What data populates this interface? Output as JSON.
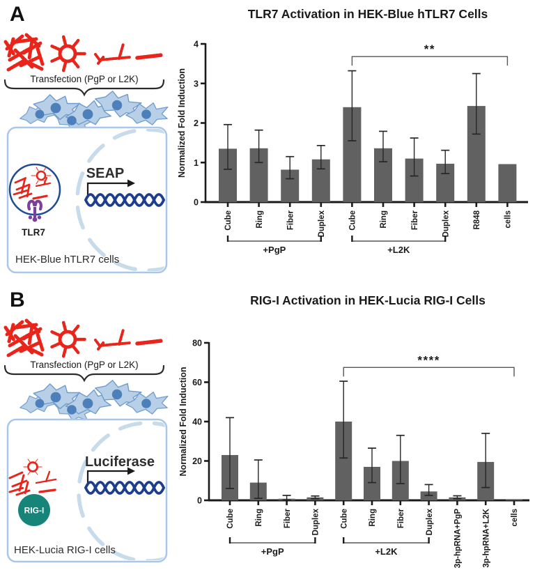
{
  "colors": {
    "bar": "#616161",
    "axis": "#1a1a1a",
    "error_bar": "#262626",
    "bracket": "#555555",
    "rna_red": "#e8241b",
    "dna_blue": "#1d3e8e",
    "tlr7_purple": "#7d3f9d",
    "rigi_teal": "#17847a",
    "cell_fill": "#b7cfe7",
    "cell_edge": "#6f9ccc",
    "nucleus_fill": "#4d7fbb",
    "membrane_box_edge": "#a9c7e8",
    "nuclear_envelope": "#c8dbeb",
    "endosome_edge": "#1e4c94"
  },
  "panels": [
    {
      "label": "A",
      "illustration": {
        "transfection": "Transfection (PgP or L2K)",
        "receptor": "TLR7",
        "reporter": "SEAP",
        "cell_line": "HEK-Blue hTLR7 cells"
      }
    },
    {
      "label": "B",
      "illustration": {
        "transfection": "Transfection (PgP or L2K)",
        "receptor": "RIG-I",
        "reporter": "Luciferase",
        "cell_line": "HEK-Lucia RIG-I cells"
      }
    }
  ],
  "chart_data": [
    {
      "type": "bar",
      "title": "TLR7 Activation in HEK-Blue hTLR7 Cells",
      "xlabel": "",
      "ylabel": "Normalized Fold Induction",
      "ylim": [
        0,
        4
      ],
      "yticks": [
        0,
        1,
        2,
        3,
        4
      ],
      "grid": false,
      "legend": "none",
      "categories": [
        "Cube",
        "Ring",
        "Fiber",
        "Duplex",
        "Cube",
        "Ring",
        "Fiber",
        "Duplex",
        "R848",
        "cells"
      ],
      "values": [
        1.35,
        1.36,
        0.82,
        1.08,
        2.4,
        1.36,
        1.1,
        0.97,
        2.43,
        0.96
      ],
      "errors_low": [
        0.83,
        1.0,
        0.59,
        0.84,
        1.55,
        1.02,
        0.66,
        0.72,
        1.72,
        null
      ],
      "errors_high": [
        1.96,
        1.82,
        1.15,
        1.43,
        3.32,
        1.79,
        1.62,
        1.31,
        3.25,
        null
      ],
      "groups": [
        {
          "label": "+PgP",
          "start": 0,
          "end": 3
        },
        {
          "label": "+L2K",
          "start": 4,
          "end": 7
        }
      ],
      "significance": [
        {
          "label": "**",
          "start": 4,
          "end": 9,
          "y": 3.68
        }
      ]
    },
    {
      "type": "bar",
      "title": "RIG-I Activation in HEK-Lucia RIG-I Cells",
      "xlabel": "",
      "ylabel": "Normalized Fold Induction",
      "ylim": [
        0,
        80
      ],
      "yticks": [
        0,
        20,
        40,
        60,
        80
      ],
      "grid": false,
      "legend": "none",
      "categories": [
        "Cube",
        "Ring",
        "Fiber",
        "Duplex",
        "Cube",
        "Ring",
        "Fiber",
        "Duplex",
        "3p-hpRNA+PgP",
        "3p-hpRNA+L2K",
        "cells"
      ],
      "values": [
        23,
        9,
        0.8,
        1.5,
        40,
        17,
        20,
        4.5,
        1.5,
        19.5,
        0.6
      ],
      "errors_low": [
        6,
        1,
        0.2,
        0.8,
        21.5,
        9,
        8.5,
        2.5,
        0.8,
        6.5,
        null
      ],
      "errors_high": [
        42,
        20.5,
        2.5,
        2.2,
        60.5,
        26.5,
        33,
        8,
        2.3,
        34,
        null
      ],
      "groups": [
        {
          "label": "+PgP",
          "start": 0,
          "end": 3
        },
        {
          "label": "+L2K",
          "start": 4,
          "end": 7
        }
      ],
      "significance": [
        {
          "label": "****",
          "start": 4,
          "end": 10,
          "y": 67.5
        }
      ]
    }
  ]
}
